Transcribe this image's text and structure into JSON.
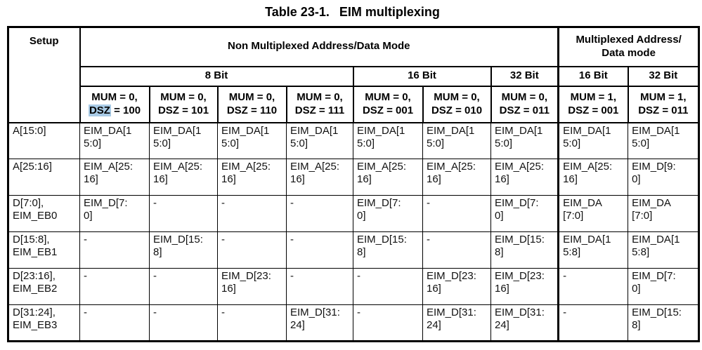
{
  "page": {
    "title_label": "Table 23-1.",
    "title_text": "EIM multiplexing"
  },
  "colors": {
    "dsz_highlight": "#a9cbe6"
  },
  "table": {
    "setup_header": "Setup",
    "group_headers": [
      {
        "label": "Non Multiplexed Address/Data Mode",
        "span": 7
      },
      {
        "label": "Multiplexed Address/\nData mode",
        "span": 2
      }
    ],
    "width_headers": [
      {
        "label": "8 Bit",
        "span": 4
      },
      {
        "label": "16 Bit",
        "span": 2
      },
      {
        "label": "32 Bit",
        "span": 1
      },
      {
        "label": "16 Bit",
        "span": 1
      },
      {
        "label": "32 Bit",
        "span": 1
      }
    ],
    "mode_headers": [
      {
        "line1": "MUM = 0,",
        "line2_hl": "DSZ",
        "line2_rest": " = 100"
      },
      {
        "line1": "MUM = 0,",
        "line2": "DSZ = 101"
      },
      {
        "line1": "MUM = 0,",
        "line2": "DSZ = 110"
      },
      {
        "line1": "MUM = 0,",
        "line2": "DSZ = 111"
      },
      {
        "line1": "MUM = 0,",
        "line2": "DSZ = 001"
      },
      {
        "line1": "MUM = 0,",
        "line2": "DSZ = 010"
      },
      {
        "line1": "MUM = 0,",
        "line2": "DSZ = 011"
      },
      {
        "line1": "MUM = 1,",
        "line2": "DSZ = 001"
      },
      {
        "line1": "MUM = 1,",
        "line2": "DSZ = 011"
      }
    ],
    "rows": [
      {
        "setup": "A[15:0]",
        "cells": [
          "EIM_DA[15:0]",
          "EIM_DA[15:0]",
          "EIM_DA[15:0]",
          "EIM_DA[15:0]",
          "EIM_DA[15:0]",
          "EIM_DA[15:0]",
          "EIM_DA[15:0]",
          "EIM_DA[15:0]",
          "EIM_DA[15:0]"
        ]
      },
      {
        "setup": "A[25:16]",
        "cells": [
          "EIM_A[25:16]",
          "EIM_A[25:16]",
          "EIM_A[25:16]",
          "EIM_A[25:16]",
          "EIM_A[25:16]",
          "EIM_A[25:16]",
          "EIM_A[25:16]",
          "EIM_A[25:16]",
          "EIM_D[9:0]"
        ]
      },
      {
        "setup": "D[7:0], EIM_EB0",
        "cells": [
          "EIM_D[7:0]",
          "-",
          "-",
          "-",
          "EIM_D[7:0]",
          "-",
          "EIM_D[7:0]",
          "EIM_DA[7:0]",
          "EIM_DA[7:0]"
        ]
      },
      {
        "setup": "D[15:8], EIM_EB1",
        "cells": [
          "-",
          "EIM_D[15:8]",
          "-",
          "-",
          "EIM_D[15:8]",
          "-",
          "EIM_D[15:8]",
          "EIM_DA[15:8]",
          "EIM_DA[15:8]"
        ]
      },
      {
        "setup": "D[23:16], EIM_EB2",
        "cells": [
          "-",
          "-",
          "EIM_D[23:16]",
          "-",
          "-",
          "EIM_D[23:16]",
          "EIM_D[23:16]",
          "-",
          "EIM_D[7:0]"
        ]
      },
      {
        "setup": "D[31:24], EIM_EB3",
        "cells": [
          "-",
          "-",
          "-",
          "EIM_D[31:24]",
          "-",
          "EIM_D[31:24]",
          "EIM_D[31:24]",
          "-",
          "EIM_D[15:8]"
        ]
      }
    ]
  }
}
